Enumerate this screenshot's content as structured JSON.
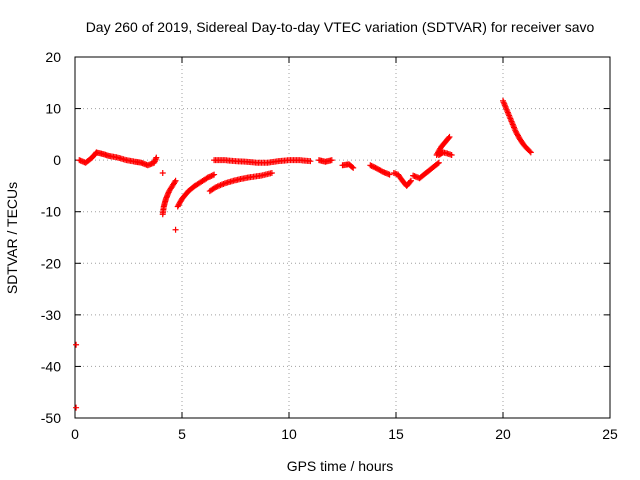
{
  "chart_data": {
    "type": "scatter",
    "title": "Day 260 of 2019, Sidereal Day-to-day VTEC variation (SDTVAR) for receiver savo",
    "xlabel": "GPS time / hours",
    "ylabel": "SDTVAR / TECUs",
    "xlim": [
      0,
      25
    ],
    "ylim": [
      -50,
      20
    ],
    "x_ticks": [
      0,
      5,
      10,
      15,
      20,
      25
    ],
    "y_ticks": [
      -50,
      -40,
      -30,
      -20,
      -10,
      0,
      10,
      20
    ],
    "x_tick_labels": [
      "0",
      "5",
      "10",
      "15",
      "20",
      "25"
    ],
    "y_tick_labels": [
      "-50",
      "-40",
      "-30",
      "-20",
      "-10",
      "0",
      "10",
      "20"
    ],
    "grid": true,
    "marker": "+",
    "color": "#ff0000",
    "series": [
      {
        "name": "outlier-low",
        "x": [
          0.05,
          0.05
        ],
        "y": [
          -48.0,
          -35.8
        ]
      },
      {
        "name": "arc-a",
        "x": [
          0.2,
          0.5,
          0.8,
          1.0,
          1.3,
          1.6,
          2.0,
          2.4,
          2.8,
          3.1,
          3.4,
          3.7,
          3.8
        ],
        "y": [
          0.0,
          -0.5,
          0.5,
          1.5,
          1.2,
          0.8,
          0.5,
          0.0,
          -0.3,
          -0.5,
          -1.0,
          -0.5,
          0.5
        ]
      },
      {
        "name": "single-a",
        "x": [
          4.1
        ],
        "y": [
          -2.5
        ]
      },
      {
        "name": "arc-b",
        "x": [
          4.1,
          4.15,
          4.25,
          4.4,
          4.55,
          4.7
        ],
        "y": [
          -10.5,
          -9.0,
          -7.5,
          -6.0,
          -5.0,
          -4.0
        ]
      },
      {
        "name": "single-b",
        "x": [
          4.7
        ],
        "y": [
          -13.5
        ]
      },
      {
        "name": "arc-c",
        "x": [
          4.8,
          5.0,
          5.3,
          5.6,
          5.9,
          6.2,
          6.5
        ],
        "y": [
          -9.0,
          -7.5,
          -6.0,
          -5.0,
          -4.2,
          -3.4,
          -2.8
        ]
      },
      {
        "name": "arc-d",
        "x": [
          6.3,
          6.6,
          7.0,
          7.4,
          7.8,
          8.2,
          8.7,
          9.2
        ],
        "y": [
          -6.0,
          -5.2,
          -4.5,
          -4.0,
          -3.6,
          -3.3,
          -3.0,
          -2.5
        ]
      },
      {
        "name": "arc-e",
        "x": [
          6.5,
          7.0,
          7.5,
          8.0,
          8.5,
          9.0,
          9.5,
          10.0,
          10.5,
          11.0
        ],
        "y": [
          0.0,
          0.0,
          -0.2,
          -0.3,
          -0.5,
          -0.5,
          -0.2,
          0.0,
          0.0,
          -0.2
        ]
      },
      {
        "name": "arc-f",
        "x": [
          11.4,
          11.7,
          12.0
        ],
        "y": [
          0.0,
          -0.3,
          0.0
        ]
      },
      {
        "name": "arc-g",
        "x": [
          12.5,
          12.8,
          13.0
        ],
        "y": [
          -1.0,
          -0.8,
          -1.5
        ]
      },
      {
        "name": "arc-h",
        "x": [
          13.8,
          14.1,
          14.4,
          14.7
        ],
        "y": [
          -1.0,
          -1.6,
          -2.3,
          -2.8
        ]
      },
      {
        "name": "arc-i",
        "x": [
          14.9,
          15.1,
          15.3,
          15.5,
          15.7
        ],
        "y": [
          -2.5,
          -2.8,
          -4.0,
          -5.0,
          -4.0
        ]
      },
      {
        "name": "arc-j",
        "x": [
          15.8,
          16.1,
          16.4,
          16.7,
          17.0
        ],
        "y": [
          -3.0,
          -3.5,
          -2.5,
          -1.5,
          -0.5
        ]
      },
      {
        "name": "arc-k",
        "x": [
          16.9,
          17.1,
          17.3,
          17.5
        ],
        "y": [
          1.0,
          2.5,
          3.5,
          4.5
        ]
      },
      {
        "name": "arc-l",
        "x": [
          17.0,
          17.2,
          17.4,
          17.6
        ],
        "y": [
          1.0,
          1.5,
          1.3,
          1.0
        ]
      },
      {
        "name": "arc-m",
        "x": [
          20.0,
          20.2,
          20.4,
          20.6,
          20.8,
          21.0,
          21.3
        ],
        "y": [
          11.5,
          9.5,
          7.5,
          5.5,
          4.0,
          2.8,
          1.5
        ]
      }
    ]
  }
}
